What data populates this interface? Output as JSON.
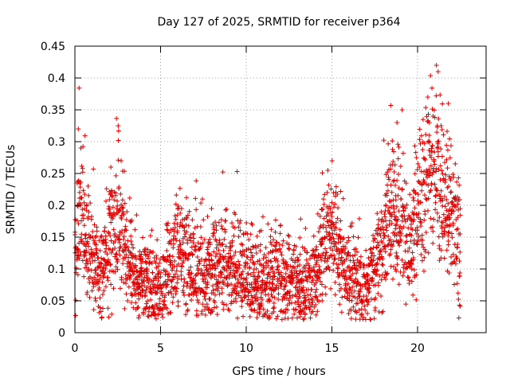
{
  "chart_data": {
    "type": "scatter",
    "title": "Day 127 of 2025, SRMTID for receiver p364",
    "xlabel": "GPS time / hours",
    "ylabel": "SRMTID / TECUs",
    "xlim": [
      0,
      24
    ],
    "ylim": [
      0,
      0.45
    ],
    "xticks": [
      0,
      5,
      10,
      15,
      20
    ],
    "yticks": [
      0,
      0.05,
      0.1,
      0.15,
      0.2,
      0.25,
      0.3,
      0.35,
      0.4,
      0.45
    ],
    "xtick_labels": [
      "0",
      "5",
      "10",
      "15",
      "20"
    ],
    "ytick_labels": [
      "0",
      "0.05",
      "0.1",
      "0.15",
      "0.2",
      "0.25",
      "0.3",
      "0.35",
      "0.4",
      "0.45"
    ],
    "grid": true,
    "marker": "+",
    "color": "#e00000",
    "series_envelope": {
      "name": "SRMTID",
      "description_points": [
        [
          0.0,
          0.12
        ],
        [
          0.3,
          0.2
        ],
        [
          0.5,
          0.16
        ],
        [
          1.0,
          0.13
        ],
        [
          1.5,
          0.08
        ],
        [
          2.0,
          0.14
        ],
        [
          2.5,
          0.16
        ],
        [
          3.0,
          0.13
        ],
        [
          3.5,
          0.07
        ],
        [
          4.0,
          0.08
        ],
        [
          5.0,
          0.07
        ],
        [
          5.5,
          0.09
        ],
        [
          6.0,
          0.12
        ],
        [
          7.0,
          0.09
        ],
        [
          8.0,
          0.1
        ],
        [
          9.0,
          0.11
        ],
        [
          10.0,
          0.09
        ],
        [
          11.0,
          0.08
        ],
        [
          12.0,
          0.09
        ],
        [
          13.0,
          0.08
        ],
        [
          13.5,
          0.06
        ],
        [
          14.0,
          0.09
        ],
        [
          14.5,
          0.13
        ],
        [
          15.0,
          0.16
        ],
        [
          15.5,
          0.12
        ],
        [
          16.0,
          0.09
        ],
        [
          17.0,
          0.08
        ],
        [
          17.5,
          0.1
        ],
        [
          18.0,
          0.14
        ],
        [
          18.5,
          0.19
        ],
        [
          19.0,
          0.16
        ],
        [
          19.5,
          0.13
        ],
        [
          20.0,
          0.19
        ],
        [
          20.5,
          0.22
        ],
        [
          21.0,
          0.26
        ],
        [
          21.5,
          0.2
        ],
        [
          22.0,
          0.18
        ],
        [
          22.5,
          0.15
        ]
      ],
      "extreme_points": [
        [
          0.2,
          0.32
        ],
        [
          0.35,
          0.29
        ],
        [
          2.1,
          0.26
        ],
        [
          2.7,
          0.27
        ],
        [
          18.8,
          0.33
        ],
        [
          19.1,
          0.35
        ],
        [
          20.6,
          0.37
        ],
        [
          20.9,
          0.34
        ],
        [
          21.1,
          0.42
        ],
        [
          21.2,
          0.41
        ],
        [
          21.8,
          0.36
        ],
        [
          5.0,
          0.0
        ]
      ]
    }
  }
}
